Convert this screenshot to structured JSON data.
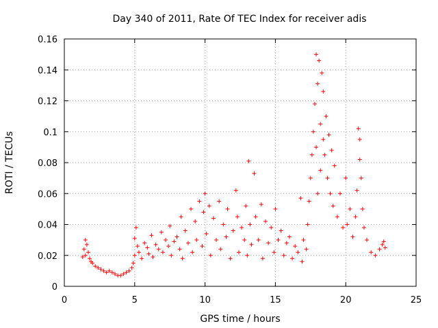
{
  "chart_data": {
    "type": "scatter",
    "title": "Day 340 of 2011, Rate Of TEC Index for receiver adis",
    "xlabel": "GPS time / hours",
    "ylabel": "ROTI / TECUs",
    "xlim": [
      0,
      25
    ],
    "ylim": [
      0,
      0.16
    ],
    "xticks": [
      "0",
      "5",
      "10",
      "15",
      "20",
      "25"
    ],
    "yticks": [
      "0",
      "0.02",
      "0.04",
      "0.06",
      "0.08",
      "0.1",
      "0.12",
      "0.14",
      "0.16"
    ],
    "grid": true,
    "marker": "+",
    "color": "#ff0000",
    "series": [
      {
        "points": [
          [
            1.3,
            0.019
          ],
          [
            1.4,
            0.024
          ],
          [
            1.5,
            0.03
          ],
          [
            1.5,
            0.02
          ],
          [
            1.6,
            0.027
          ],
          [
            1.7,
            0.022
          ],
          [
            1.8,
            0.018
          ],
          [
            1.9,
            0.016
          ],
          [
            2.0,
            0.015
          ],
          [
            2.2,
            0.013
          ],
          [
            2.4,
            0.012
          ],
          [
            2.6,
            0.011
          ],
          [
            2.8,
            0.01
          ],
          [
            3.0,
            0.009
          ],
          [
            3.2,
            0.01
          ],
          [
            3.4,
            0.009
          ],
          [
            3.6,
            0.008
          ],
          [
            3.8,
            0.007
          ],
          [
            4.0,
            0.007
          ],
          [
            4.2,
            0.008
          ],
          [
            4.4,
            0.009
          ],
          [
            4.6,
            0.01
          ],
          [
            4.8,
            0.012
          ],
          [
            4.9,
            0.015
          ],
          [
            5.0,
            0.02
          ],
          [
            5.0,
            0.031
          ],
          [
            5.1,
            0.038
          ],
          [
            5.2,
            0.026
          ],
          [
            5.3,
            0.022
          ],
          [
            5.5,
            0.018
          ],
          [
            5.7,
            0.028
          ],
          [
            5.9,
            0.025
          ],
          [
            6.0,
            0.021
          ],
          [
            6.2,
            0.033
          ],
          [
            6.3,
            0.019
          ],
          [
            6.5,
            0.027
          ],
          [
            6.7,
            0.024
          ],
          [
            6.9,
            0.035
          ],
          [
            7.0,
            0.022
          ],
          [
            7.2,
            0.03
          ],
          [
            7.4,
            0.026
          ],
          [
            7.5,
            0.039
          ],
          [
            7.6,
            0.02
          ],
          [
            7.8,
            0.029
          ],
          [
            8.0,
            0.032
          ],
          [
            8.2,
            0.024
          ],
          [
            8.3,
            0.045
          ],
          [
            8.4,
            0.018
          ],
          [
            8.6,
            0.036
          ],
          [
            8.8,
            0.028
          ],
          [
            9.0,
            0.05
          ],
          [
            9.1,
            0.022
          ],
          [
            9.3,
            0.042
          ],
          [
            9.4,
            0.03
          ],
          [
            9.6,
            0.055
          ],
          [
            9.8,
            0.026
          ],
          [
            9.9,
            0.048
          ],
          [
            10.0,
            0.06
          ],
          [
            10.1,
            0.034
          ],
          [
            10.3,
            0.052
          ],
          [
            10.4,
            0.02
          ],
          [
            10.6,
            0.044
          ],
          [
            10.8,
            0.03
          ],
          [
            11.0,
            0.055
          ],
          [
            11.1,
            0.024
          ],
          [
            11.3,
            0.04
          ],
          [
            11.5,
            0.032
          ],
          [
            11.6,
            0.05
          ],
          [
            11.8,
            0.018
          ],
          [
            12.0,
            0.036
          ],
          [
            12.2,
            0.062
          ],
          [
            12.3,
            0.045
          ],
          [
            12.4,
            0.022
          ],
          [
            12.6,
            0.038
          ],
          [
            12.8,
            0.03
          ],
          [
            12.9,
            0.052
          ],
          [
            13.0,
            0.02
          ],
          [
            13.1,
            0.081
          ],
          [
            13.2,
            0.04
          ],
          [
            13.3,
            0.027
          ],
          [
            13.5,
            0.073
          ],
          [
            13.6,
            0.045
          ],
          [
            13.8,
            0.03
          ],
          [
            14.0,
            0.053
          ],
          [
            14.1,
            0.018
          ],
          [
            14.3,
            0.042
          ],
          [
            14.5,
            0.028
          ],
          [
            14.7,
            0.038
          ],
          [
            14.9,
            0.022
          ],
          [
            15.0,
            0.05
          ],
          [
            15.2,
            0.03
          ],
          [
            15.4,
            0.036
          ],
          [
            15.6,
            0.02
          ],
          [
            15.8,
            0.028
          ],
          [
            16.0,
            0.032
          ],
          [
            16.2,
            0.018
          ],
          [
            16.4,
            0.026
          ],
          [
            16.6,
            0.022
          ],
          [
            16.8,
            0.057
          ],
          [
            16.9,
            0.016
          ],
          [
            17.0,
            0.03
          ],
          [
            17.2,
            0.024
          ],
          [
            17.3,
            0.04
          ],
          [
            17.4,
            0.055
          ],
          [
            17.5,
            0.07
          ],
          [
            17.6,
            0.085
          ],
          [
            17.7,
            0.1
          ],
          [
            17.8,
            0.118
          ],
          [
            17.9,
            0.15
          ],
          [
            17.9,
            0.09
          ],
          [
            18.0,
            0.131
          ],
          [
            18.0,
            0.06
          ],
          [
            18.1,
            0.146
          ],
          [
            18.2,
            0.105
          ],
          [
            18.2,
            0.075
          ],
          [
            18.3,
            0.138
          ],
          [
            18.4,
            0.126
          ],
          [
            18.4,
            0.095
          ],
          [
            18.5,
            0.085
          ],
          [
            18.6,
            0.11
          ],
          [
            18.7,
            0.07
          ],
          [
            18.8,
            0.098
          ],
          [
            18.9,
            0.06
          ],
          [
            19.0,
            0.088
          ],
          [
            19.1,
            0.052
          ],
          [
            19.2,
            0.078
          ],
          [
            19.4,
            0.045
          ],
          [
            19.6,
            0.06
          ],
          [
            19.8,
            0.038
          ],
          [
            20.0,
            0.07
          ],
          [
            20.1,
            0.04
          ],
          [
            20.3,
            0.05
          ],
          [
            20.5,
            0.032
          ],
          [
            20.7,
            0.045
          ],
          [
            20.8,
            0.062
          ],
          [
            20.9,
            0.102
          ],
          [
            21.0,
            0.082
          ],
          [
            21.0,
            0.095
          ],
          [
            21.1,
            0.07
          ],
          [
            21.2,
            0.05
          ],
          [
            21.3,
            0.038
          ],
          [
            21.5,
            0.03
          ],
          [
            21.8,
            0.022
          ],
          [
            22.1,
            0.02
          ],
          [
            22.4,
            0.024
          ],
          [
            22.6,
            0.027
          ],
          [
            22.7,
            0.029
          ],
          [
            22.8,
            0.025
          ]
        ]
      }
    ]
  }
}
